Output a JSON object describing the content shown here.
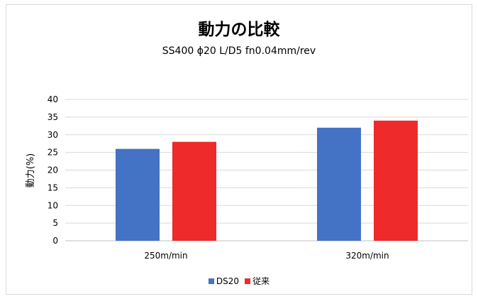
{
  "chart_data": {
    "type": "bar",
    "title": "動力の比較",
    "subtitle": "SS400 ϕ20 L/D5 fn0.04mm/rev",
    "ylabel": "動力(%)",
    "xlabel": "",
    "categories": [
      "250m/min",
      "320m/min"
    ],
    "ylim": [
      0,
      40
    ],
    "yticks": [
      0,
      5,
      10,
      15,
      20,
      25,
      30,
      35,
      40
    ],
    "grid": true,
    "legend_position": "bottom",
    "series": [
      {
        "name": "DS20",
        "values": [
          26,
          32
        ],
        "color": "#4472c4"
      },
      {
        "name": "従来",
        "values": [
          28,
          34
        ],
        "color": "#ee2a2a"
      }
    ]
  }
}
